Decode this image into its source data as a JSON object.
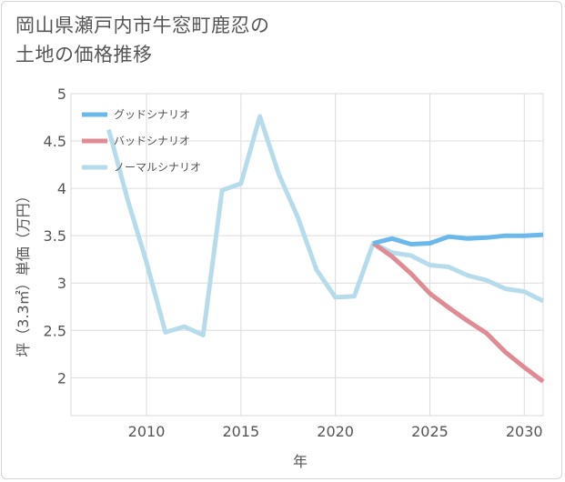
{
  "title_lines": [
    "岡山県瀬戸内市牛窓町鹿忍の",
    "土地の価格推移"
  ],
  "chart_data": {
    "type": "line",
    "title": "岡山県瀬戸内市牛窓町鹿忍の土地の価格推移",
    "xlabel": "年",
    "ylabel": "坪（3.3㎡）単価（万円）",
    "xlim": [
      2006,
      2031
    ],
    "ylim": [
      1.6,
      5
    ],
    "x_ticks": [
      2010,
      2015,
      2020,
      2025,
      2030
    ],
    "y_ticks": [
      2,
      2.5,
      3,
      3.5,
      4,
      4.5,
      5
    ],
    "x_tick_labels": [
      "2010",
      "2015",
      "2020",
      "2025",
      "2030"
    ],
    "y_tick_labels": [
      "2",
      "2.5",
      "3",
      "3.5",
      "4",
      "4.5",
      "5"
    ],
    "grid": true,
    "legend_position": "top-left",
    "series": [
      {
        "name": "グッドシナリオ",
        "color": "#6bb8ea",
        "x": [
          2022,
          2023,
          2024,
          2025,
          2026,
          2027,
          2028,
          2029,
          2030,
          2031
        ],
        "y": [
          3.42,
          3.47,
          3.41,
          3.42,
          3.49,
          3.47,
          3.48,
          3.5,
          3.5,
          3.51
        ]
      },
      {
        "name": "バッドシナリオ",
        "color": "#e08a94",
        "x": [
          2022,
          2023,
          2024,
          2025,
          2026,
          2027,
          2028,
          2029,
          2030,
          2031
        ],
        "y": [
          3.42,
          3.28,
          3.1,
          2.89,
          2.74,
          2.6,
          2.47,
          2.27,
          2.11,
          1.96
        ]
      },
      {
        "name": "ノーマルシナリオ",
        "color": "#b6dcec",
        "x": [
          2008,
          2009,
          2010,
          2011,
          2012,
          2013,
          2014,
          2015,
          2016,
          2017,
          2018,
          2019,
          2020,
          2021,
          2022,
          2023,
          2024,
          2025,
          2026,
          2027,
          2028,
          2029,
          2030,
          2031
        ],
        "y": [
          4.62,
          3.88,
          3.22,
          2.48,
          2.54,
          2.45,
          3.98,
          4.05,
          4.76,
          4.15,
          3.7,
          3.14,
          2.85,
          2.86,
          3.42,
          3.32,
          3.29,
          3.19,
          3.17,
          3.08,
          3.03,
          2.94,
          2.91,
          2.81
        ]
      }
    ]
  }
}
